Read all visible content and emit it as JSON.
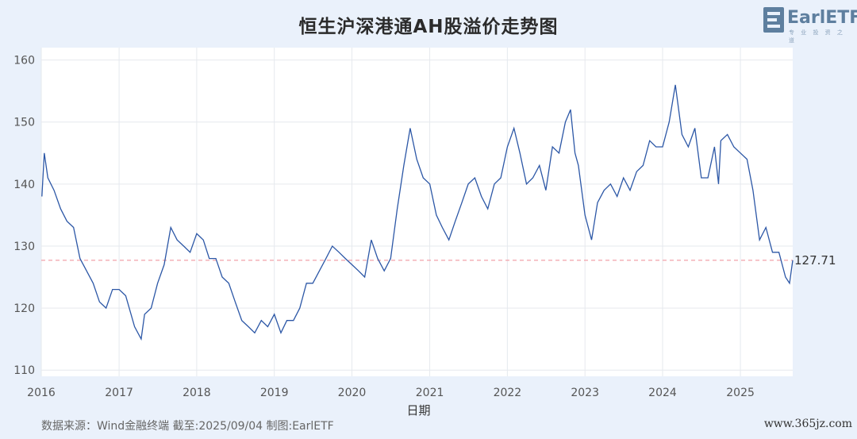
{
  "chart_data": {
    "type": "line",
    "title": "恒生沪深港通AH股溢价走势图",
    "xlabel": "日期",
    "ylabel": "",
    "ylim": [
      109,
      162
    ],
    "yticks": [
      110,
      120,
      130,
      140,
      150,
      160
    ],
    "xlim": [
      "2016-01-01",
      "2025-09-04"
    ],
    "xtick_labels": [
      "2016",
      "2017",
      "2018",
      "2019",
      "2020",
      "2021",
      "2022",
      "2023",
      "2024",
      "2025"
    ],
    "grid": true,
    "reference_line": {
      "value": 127.71,
      "label": "127.71",
      "color": "#f2a0a8"
    },
    "series": [
      {
        "color": "#2c57a6",
        "x": [
          "2016-01-04",
          "2016-01-15",
          "2016-02-01",
          "2016-03-01",
          "2016-04-01",
          "2016-05-01",
          "2016-06-01",
          "2016-07-01",
          "2016-08-01",
          "2016-09-01",
          "2016-10-01",
          "2016-11-01",
          "2016-12-01",
          "2017-01-01",
          "2017-02-01",
          "2017-03-15",
          "2017-04-15",
          "2017-05-01",
          "2017-06-01",
          "2017-07-01",
          "2017-08-01",
          "2017-09-01",
          "2017-10-01",
          "2017-11-01",
          "2017-12-01",
          "2018-01-01",
          "2018-02-01",
          "2018-03-01",
          "2018-04-01",
          "2018-05-01",
          "2018-06-01",
          "2018-07-01",
          "2018-08-01",
          "2018-09-01",
          "2018-10-01",
          "2018-11-01",
          "2018-12-01",
          "2019-01-01",
          "2019-02-01",
          "2019-03-01",
          "2019-04-01",
          "2019-05-01",
          "2019-06-01",
          "2019-07-01",
          "2019-08-01",
          "2019-09-01",
          "2019-10-01",
          "2019-11-01",
          "2019-12-01",
          "2020-01-01",
          "2020-02-01",
          "2020-03-01",
          "2020-04-01",
          "2020-05-01",
          "2020-06-01",
          "2020-07-01",
          "2020-08-01",
          "2020-09-01",
          "2020-10-01",
          "2020-11-01",
          "2020-12-01",
          "2021-01-01",
          "2021-02-01",
          "2021-03-01",
          "2021-04-01",
          "2021-05-01",
          "2021-06-01",
          "2021-07-01",
          "2021-08-01",
          "2021-09-01",
          "2021-10-01",
          "2021-11-01",
          "2021-12-01",
          "2022-01-01",
          "2022-02-01",
          "2022-03-01",
          "2022-04-01",
          "2022-05-01",
          "2022-06-01",
          "2022-07-01",
          "2022-08-01",
          "2022-09-01",
          "2022-10-01",
          "2022-10-25",
          "2022-11-15",
          "2022-12-01",
          "2023-01-01",
          "2023-02-01",
          "2023-03-01",
          "2023-04-01",
          "2023-05-01",
          "2023-06-01",
          "2023-07-01",
          "2023-08-01",
          "2023-09-01",
          "2023-10-01",
          "2023-11-01",
          "2023-12-01",
          "2024-01-01",
          "2024-02-01",
          "2024-03-01",
          "2024-04-01",
          "2024-05-01",
          "2024-06-01",
          "2024-07-01",
          "2024-08-01",
          "2024-09-01",
          "2024-09-20",
          "2024-10-01",
          "2024-11-01",
          "2024-12-01",
          "2025-01-01",
          "2025-02-01",
          "2025-03-01",
          "2025-04-01",
          "2025-05-01",
          "2025-06-01",
          "2025-07-01",
          "2025-08-01",
          "2025-08-20",
          "2025-09-04"
        ],
        "y": [
          138,
          145,
          141,
          139,
          136,
          134,
          133,
          128,
          126,
          124,
          121,
          120,
          123,
          123,
          122,
          117,
          115,
          119,
          120,
          124,
          127,
          133,
          131,
          130,
          129,
          132,
          131,
          128,
          128,
          125,
          124,
          121,
          118,
          117,
          116,
          118,
          117,
          119,
          116,
          118,
          118,
          120,
          124,
          124,
          126,
          128,
          130,
          129,
          128,
          127,
          126,
          125,
          131,
          128,
          126,
          128,
          136,
          143,
          149,
          144,
          141,
          140,
          135,
          133,
          131,
          134,
          137,
          140,
          141,
          138,
          136,
          140,
          141,
          146,
          149,
          145,
          140,
          141,
          143,
          139,
          146,
          145,
          150,
          152,
          145,
          143,
          135,
          131,
          137,
          139,
          140,
          138,
          141,
          139,
          142,
          143,
          147,
          146,
          146,
          150,
          156,
          148,
          146,
          149,
          141,
          141,
          146,
          140,
          147,
          148,
          146,
          145,
          144,
          139,
          131,
          133,
          129,
          129,
          125,
          124,
          127.71
        ]
      }
    ]
  },
  "footer": "数据来源：Wind金融终端 截至:2025/09/04 制图:EarlETF",
  "logo": {
    "text": "EarlETF",
    "subtitle": "专 业 投 资 之 道"
  },
  "watermark": "www.365jz.com"
}
